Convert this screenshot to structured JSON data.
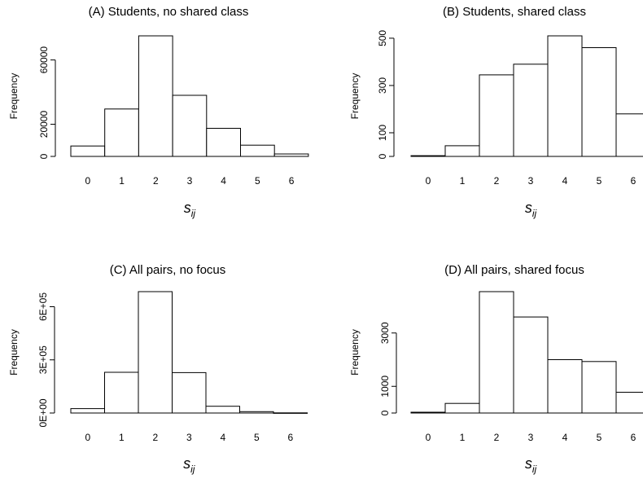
{
  "chart_data": [
    {
      "type": "bar",
      "title": "(A) Students, no shared class",
      "xlabel": {
        "main": "s",
        "sub": "ij"
      },
      "ylabel": "Frequency",
      "categories": [
        "0",
        "1",
        "2",
        "3",
        "4",
        "5",
        "6"
      ],
      "values": [
        6500,
        29500,
        75000,
        38000,
        17500,
        7000,
        1500
      ],
      "yticks": [
        0,
        20000,
        60000
      ],
      "ylim": [
        0,
        75000
      ],
      "grid": false
    },
    {
      "type": "bar",
      "title": "(B) Students, shared class",
      "xlabel": {
        "main": "s",
        "sub": "ij"
      },
      "ylabel": "Frequency",
      "categories": [
        "0",
        "1",
        "2",
        "3",
        "4",
        "5",
        "6"
      ],
      "values": [
        3,
        45,
        345,
        390,
        510,
        460,
        180
      ],
      "yticks": [
        0,
        100,
        300,
        500
      ],
      "ylim": [
        0,
        510
      ],
      "grid": false
    },
    {
      "type": "bar",
      "title": "(C) All pairs, no focus",
      "xlabel": {
        "main": "s",
        "sub": "ij"
      },
      "ylabel": "Frequency",
      "categories": [
        "0",
        "1",
        "2",
        "3",
        "4",
        "5",
        "6"
      ],
      "values": [
        25000,
        230000,
        685000,
        228000,
        38000,
        8000,
        1000
      ],
      "yticks": [
        0,
        300000,
        600000
      ],
      "ytick_labels": [
        "0E+00",
        "3E+05",
        "6E+05"
      ],
      "ylim": [
        0,
        685000
      ],
      "grid": false
    },
    {
      "type": "bar",
      "title": "(D) All pairs, shared focus",
      "xlabel": {
        "main": "s",
        "sub": "ij"
      },
      "ylabel": "Frequency",
      "categories": [
        "0",
        "1",
        "2",
        "3",
        "4",
        "5",
        "6"
      ],
      "values": [
        30,
        360,
        4550,
        3600,
        2000,
        1930,
        780
      ],
      "yticks": [
        0,
        1000,
        3000
      ],
      "ylim": [
        0,
        4550
      ],
      "grid": false
    }
  ]
}
